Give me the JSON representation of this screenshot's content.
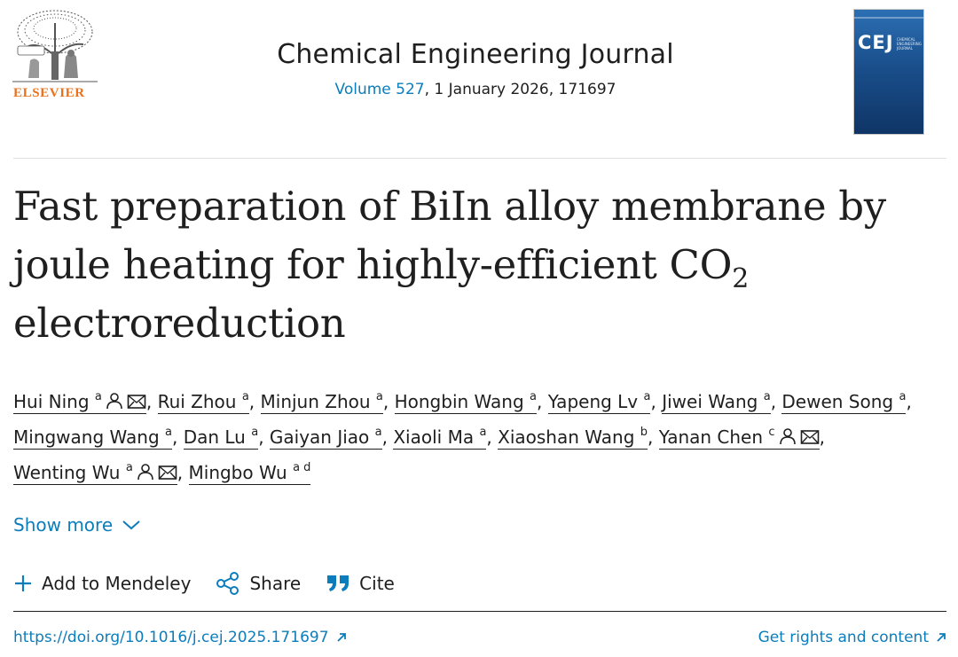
{
  "publisher": {
    "name": "ELSEVIER",
    "logo": "elsevier-tree-logo"
  },
  "journal": {
    "title": "Chemical Engineering Journal",
    "volume_label": "Volume 527",
    "issue_rest": ", 1 January 2026, 171697",
    "cover": {
      "abbr": "CEJ",
      "subtitle": "CHEMICAL ENGINEERING JOURNAL"
    }
  },
  "article": {
    "title_before_sub": "Fast preparation of BiIn alloy membrane by joule heating for highly-efficient CO",
    "title_sub": "2",
    "title_after_sub": " electroreduction"
  },
  "authors": [
    {
      "name": "Hui Ning",
      "aff": "a",
      "person_icon": true,
      "email_icon": true
    },
    {
      "name": "Rui Zhou",
      "aff": "a"
    },
    {
      "name": "Minjun Zhou",
      "aff": "a"
    },
    {
      "name": "Hongbin Wang",
      "aff": "a"
    },
    {
      "name": "Yapeng Lv",
      "aff": "a"
    },
    {
      "name": "Jiwei Wang",
      "aff": "a"
    },
    {
      "name": "Dewen Song",
      "aff": "a"
    },
    {
      "name": "Mingwang Wang",
      "aff": "a"
    },
    {
      "name": "Dan Lu",
      "aff": "a"
    },
    {
      "name": "Gaiyan Jiao",
      "aff": "a"
    },
    {
      "name": "Xiaoli Ma",
      "aff": "a"
    },
    {
      "name": "Xiaoshan Wang",
      "aff": "b"
    },
    {
      "name": "Yanan Chen",
      "aff": "c",
      "person_icon": true,
      "email_icon": true
    },
    {
      "name": "Wenting Wu",
      "aff": "a",
      "person_icon": true,
      "email_icon": true
    },
    {
      "name": "Mingbo Wu",
      "aff": "a d"
    }
  ],
  "show_more": {
    "label": "Show more",
    "icon": "chevron-down-icon"
  },
  "actions": {
    "mendeley": {
      "label": "Add to Mendeley",
      "icon": "plus-icon"
    },
    "share": {
      "label": "Share",
      "icon": "share-icon"
    },
    "cite": {
      "label": "Cite",
      "icon": "quote-icon"
    }
  },
  "links": {
    "doi": "https://doi.org/10.1016/j.cej.2025.171697",
    "rights": "Get rights and content"
  },
  "colors": {
    "link": "#0c7dbb",
    "text": "#1f1f1f",
    "elsevier_orange": "#e9711c"
  }
}
